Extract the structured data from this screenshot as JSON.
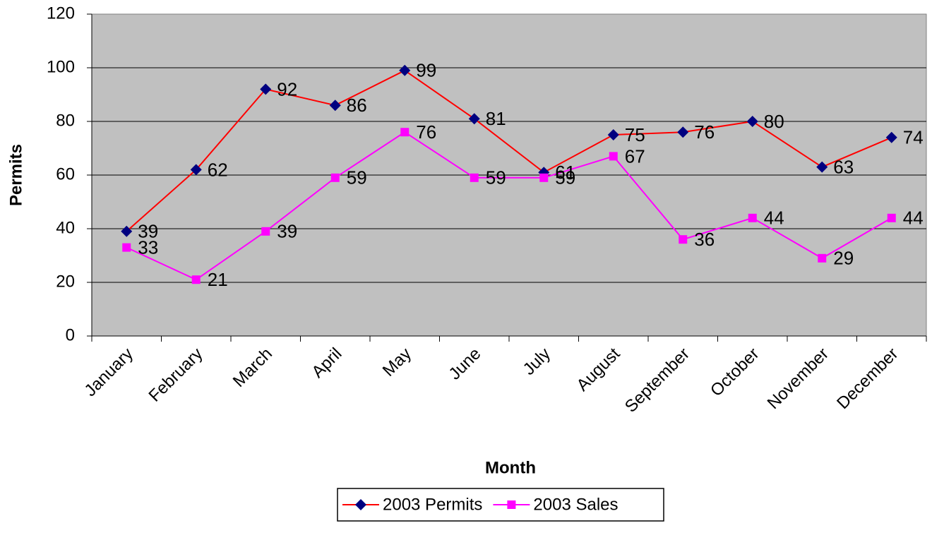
{
  "chart_data": {
    "type": "line",
    "x_label": "Month",
    "y_label": "Permits",
    "categories": [
      "January",
      "February",
      "March",
      "April",
      "May",
      "June",
      "July",
      "August",
      "September",
      "October",
      "November",
      "December"
    ],
    "series": [
      {
        "name": "2003 Permits",
        "color": "#ff0000",
        "marker_color": "#000080",
        "marker": "diamond",
        "values": [
          39,
          62,
          92,
          86,
          99,
          81,
          61,
          75,
          76,
          80,
          63,
          74
        ]
      },
      {
        "name": "2003 Sales",
        "color": "#ff00ff",
        "marker_color": "#ff00ff",
        "marker": "square",
        "values": [
          33,
          21,
          39,
          59,
          76,
          59,
          59,
          67,
          36,
          44,
          29,
          44
        ]
      }
    ],
    "ylim": [
      0,
      120
    ],
    "yticks": [
      0,
      20,
      40,
      60,
      80,
      100,
      120
    ],
    "grid": true,
    "legend": "bottom",
    "plot_background": "#c0c0c0"
  }
}
